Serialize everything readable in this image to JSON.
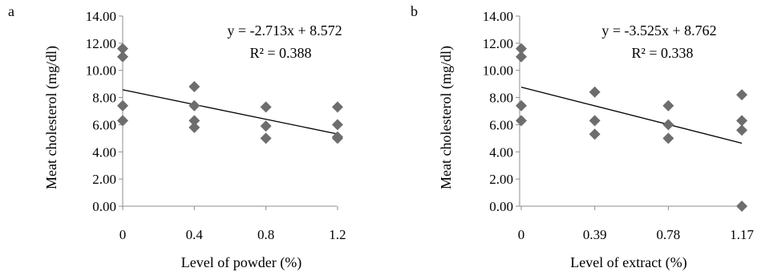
{
  "chart_data": [
    {
      "type": "scatter",
      "panel_label": "a",
      "xlabel": "Level of powder (%)",
      "ylabel": "Meat cholesterol (mg/dl)",
      "ylim": [
        0,
        14
      ],
      "y_ticks": [
        "0.00",
        "2.00",
        "4.00",
        "6.00",
        "8.00",
        "10.00",
        "12.00",
        "14.00"
      ],
      "x_ticks": [
        "0",
        "0.4",
        "0.8",
        "1.2"
      ],
      "x_tick_values": [
        0,
        0.4,
        0.8,
        1.2
      ],
      "xlim": [
        0,
        1.2
      ],
      "points": [
        {
          "x": 0,
          "y": 11.6
        },
        {
          "x": 0,
          "y": 11.0
        },
        {
          "x": 0,
          "y": 7.4
        },
        {
          "x": 0,
          "y": 6.3
        },
        {
          "x": 0.4,
          "y": 8.8
        },
        {
          "x": 0.4,
          "y": 7.4
        },
        {
          "x": 0.4,
          "y": 6.3
        },
        {
          "x": 0.4,
          "y": 5.8
        },
        {
          "x": 0.8,
          "y": 7.3
        },
        {
          "x": 0.8,
          "y": 5.9
        },
        {
          "x": 0.8,
          "y": 5.0
        },
        {
          "x": 1.2,
          "y": 7.3
        },
        {
          "x": 1.2,
          "y": 6.0
        },
        {
          "x": 1.2,
          "y": 5.1
        },
        {
          "x": 1.2,
          "y": 5.0
        }
      ],
      "trendline": {
        "slope": -2.713,
        "intercept": 8.572
      },
      "equation": "y = -2.713x + 8.572",
      "r_squared": "R² = 0.388",
      "marker_color": "#6d6d6d",
      "grid": false,
      "legend": "none"
    },
    {
      "type": "scatter",
      "panel_label": "b",
      "xlabel": "Level of extract (%)",
      "ylabel": "Meat cholesterol (mg/dl)",
      "ylim": [
        0,
        14
      ],
      "y_ticks": [
        "0.00",
        "2.00",
        "4.00",
        "6.00",
        "8.00",
        "10.00",
        "12.00",
        "14.00"
      ],
      "x_ticks": [
        "0",
        "0.39",
        "0.78",
        "1.17"
      ],
      "x_tick_values": [
        0,
        0.39,
        0.78,
        1.17
      ],
      "xlim": [
        0,
        1.17
      ],
      "points": [
        {
          "x": 0,
          "y": 11.6
        },
        {
          "x": 0,
          "y": 11.0
        },
        {
          "x": 0,
          "y": 7.4
        },
        {
          "x": 0,
          "y": 6.3
        },
        {
          "x": 0.39,
          "y": 8.4
        },
        {
          "x": 0.39,
          "y": 6.3
        },
        {
          "x": 0.39,
          "y": 5.3
        },
        {
          "x": 0.78,
          "y": 7.4
        },
        {
          "x": 0.78,
          "y": 6.0
        },
        {
          "x": 0.78,
          "y": 5.0
        },
        {
          "x": 1.17,
          "y": 8.2
        },
        {
          "x": 1.17,
          "y": 6.3
        },
        {
          "x": 1.17,
          "y": 5.6
        },
        {
          "x": 1.17,
          "y": 0.0
        }
      ],
      "trendline": {
        "slope": -3.525,
        "intercept": 8.762
      },
      "equation": "y = -3.525x + 8.762",
      "r_squared": "R² = 0.338",
      "marker_color": "#6d6d6d",
      "grid": false,
      "legend": "none"
    }
  ]
}
